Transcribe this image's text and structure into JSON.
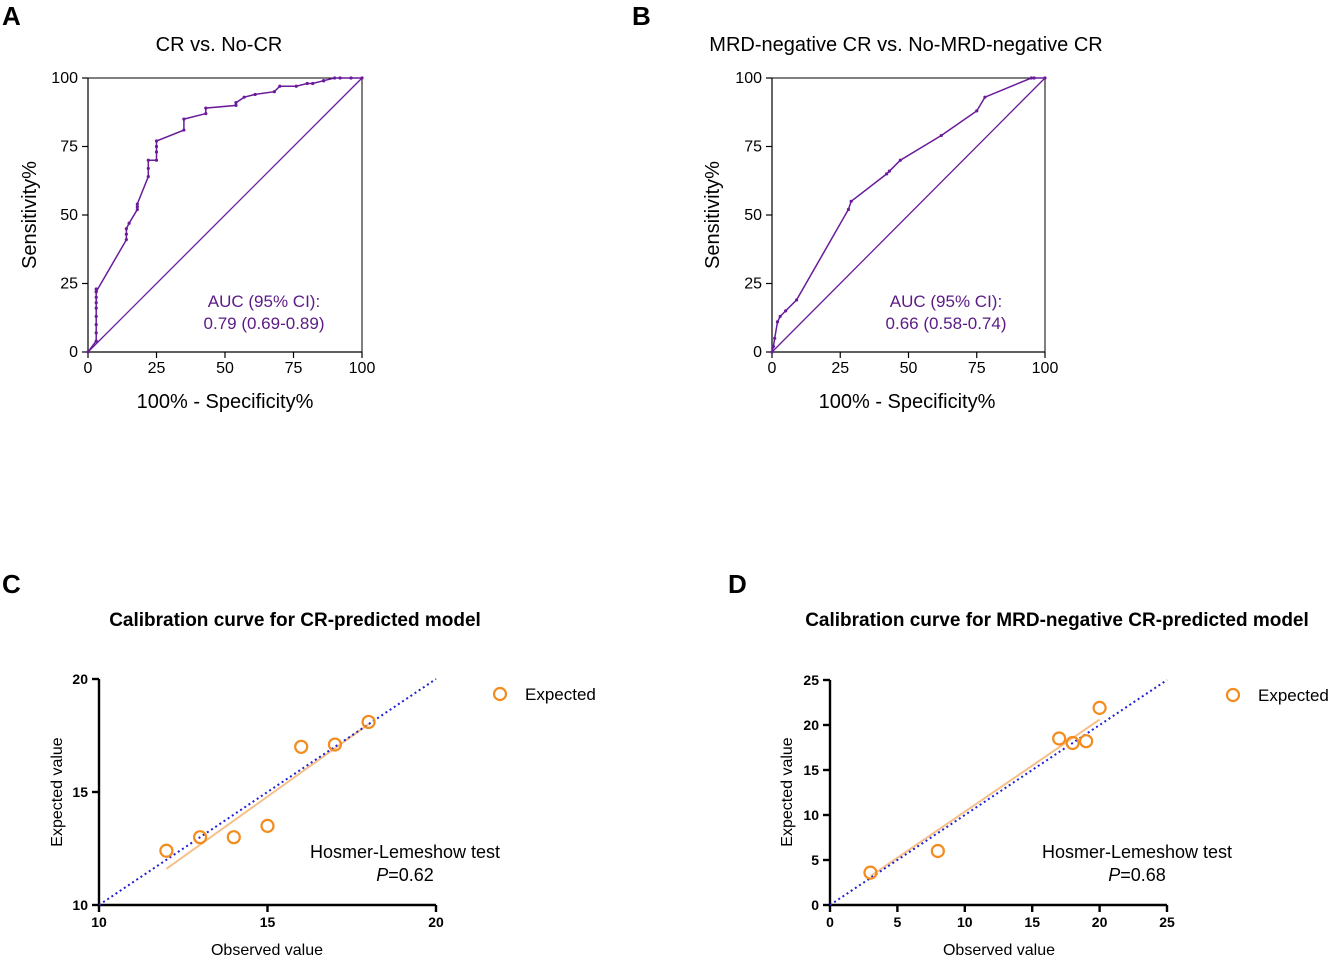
{
  "colors": {
    "roc": "#6a1b9a",
    "auc_text": "#5c1a86",
    "marker": "#f28c1e",
    "fit": "#f6c08a",
    "ideal": "#1f1fd6"
  },
  "chart_data": [
    {
      "id": "A",
      "panel_label": "A",
      "type": "line",
      "title": "CR vs. No-CR",
      "xlabel": "100% - Specificity%",
      "ylabel": "Sensitivity%",
      "xlim": [
        0,
        100
      ],
      "ylim": [
        0,
        100
      ],
      "xticks": [
        "0",
        "25",
        "50",
        "75",
        "100"
      ],
      "yticks": [
        "0",
        "25",
        "50",
        "75",
        "100"
      ],
      "auc_line1": "AUC (95% CI):",
      "auc_line2": "0.79 (0.69-0.89)",
      "series": [
        {
          "name": "ROC",
          "x": [
            0,
            3,
            3,
            3,
            3,
            3,
            3,
            3,
            3,
            3,
            3,
            14,
            14,
            14,
            15,
            18,
            18,
            18,
            22,
            22,
            22,
            25,
            25,
            25,
            25,
            35,
            35,
            43,
            43,
            54,
            54,
            57,
            61,
            68,
            70,
            76,
            80,
            82,
            86,
            86,
            90,
            92,
            96,
            100
          ],
          "y": [
            0,
            4,
            7,
            10,
            13,
            16,
            18,
            20,
            22,
            23,
            22,
            41,
            43,
            45,
            47,
            52,
            53,
            54,
            64,
            67,
            70,
            70,
            73,
            75,
            77,
            81,
            85,
            87,
            89,
            90,
            91,
            93,
            94,
            95,
            97,
            97,
            98,
            98,
            99,
            99,
            100,
            100,
            100,
            100
          ]
        },
        {
          "name": "Reference",
          "x": [
            0,
            100
          ],
          "y": [
            0,
            100
          ]
        }
      ]
    },
    {
      "id": "B",
      "panel_label": "B",
      "type": "line",
      "title": "MRD-negative CR vs. No-MRD-negative CR",
      "xlabel": "100% - Specificity%",
      "ylabel": "Sensitivity%",
      "xlim": [
        0,
        100
      ],
      "ylim": [
        0,
        100
      ],
      "xticks": [
        "0",
        "25",
        "50",
        "75",
        "100"
      ],
      "yticks": [
        "0",
        "25",
        "50",
        "75",
        "100"
      ],
      "auc_line1": "AUC (95% CI):",
      "auc_line2": "0.66 (0.58-0.74)",
      "series": [
        {
          "name": "ROC",
          "x": [
            0,
            0.5,
            1,
            2,
            3,
            5,
            9,
            28,
            29,
            42,
            43,
            47,
            62,
            75,
            78,
            95,
            96,
            100
          ],
          "y": [
            0,
            2,
            5,
            11,
            13,
            15,
            19,
            52,
            55,
            65,
            66,
            70,
            79,
            88,
            93,
            100,
            100,
            100
          ]
        },
        {
          "name": "Reference",
          "x": [
            0,
            100
          ],
          "y": [
            0,
            100
          ]
        }
      ]
    },
    {
      "id": "C",
      "panel_label": "C",
      "type": "scatter",
      "title": "Calibration curve for CR-predicted model",
      "xlabel": "Observed value",
      "ylabel": "Expected value",
      "xlim": [
        10,
        20
      ],
      "ylim": [
        10,
        20
      ],
      "xticks": [
        "10",
        "15",
        "20"
      ],
      "yticks": [
        "10",
        "15",
        "20"
      ],
      "legend": "Expected",
      "test_name": "Hosmer-Lemeshow test",
      "p_label": "P",
      "p_value": "=0.62",
      "series": [
        {
          "name": "Expected",
          "x": [
            12,
            13,
            14,
            15,
            16,
            17,
            18
          ],
          "y": [
            12.4,
            13.0,
            13.0,
            13.5,
            17.0,
            17.1,
            18.1
          ]
        }
      ],
      "fit_line": {
        "x": [
          12,
          18
        ],
        "y": [
          11.6,
          18.0
        ]
      },
      "ideal_line": {
        "x": [
          10,
          20
        ],
        "y": [
          10,
          20
        ]
      }
    },
    {
      "id": "D",
      "panel_label": "D",
      "type": "scatter",
      "title": "Calibration curve for MRD-negative CR-predicted model",
      "xlabel": "Observed value",
      "ylabel": "Expected value",
      "xlim": [
        0,
        25
      ],
      "ylim": [
        0,
        25
      ],
      "xticks": [
        "0",
        "5",
        "10",
        "15",
        "20",
        "25"
      ],
      "yticks": [
        "0",
        "5",
        "10",
        "15",
        "20",
        "25"
      ],
      "legend": "Expected",
      "test_name": "Hosmer-Lemeshow test",
      "p_label": "P",
      "p_value": "=0.68",
      "series": [
        {
          "name": "Expected",
          "x": [
            3,
            8,
            17,
            18,
            19,
            20
          ],
          "y": [
            3.6,
            6.0,
            18.5,
            18.0,
            18.2,
            21.9
          ]
        }
      ],
      "fit_line": {
        "x": [
          3,
          20
        ],
        "y": [
          3.2,
          20.6
        ]
      },
      "ideal_line": {
        "x": [
          0,
          25
        ],
        "y": [
          0,
          25
        ]
      }
    }
  ]
}
